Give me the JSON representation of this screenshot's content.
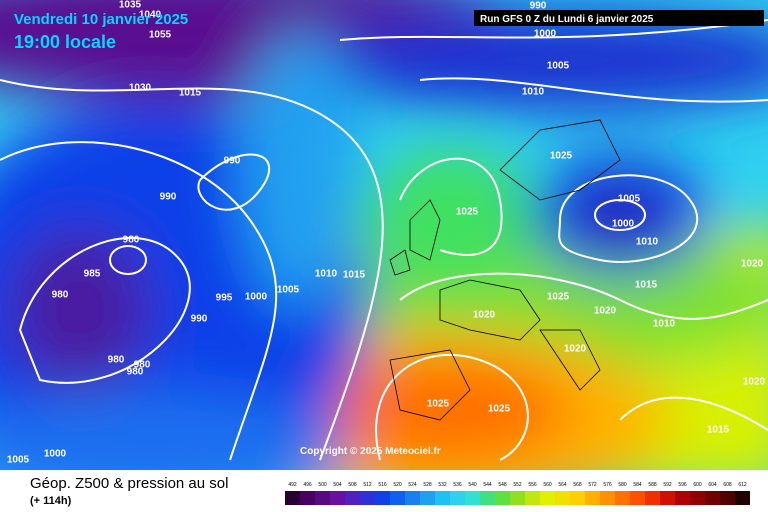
{
  "header": {
    "valid_date": "Vendredi 10 janvier 2025",
    "local_time": "19:00 locale",
    "run": "Run GFS 0 Z du Lundi 6 janvier 2025"
  },
  "copyright": "Copyright © 2025 Meteociel.fr",
  "footer": {
    "title": "Géop. Z500 & pression au sol",
    "lead_time": "(+ 114h)"
  },
  "legend": {
    "levels": [
      492,
      496,
      500,
      504,
      508,
      512,
      516,
      520,
      524,
      528,
      532,
      536,
      540,
      544,
      548,
      552,
      556,
      560,
      564,
      568,
      572,
      576,
      580,
      584,
      588,
      592,
      596,
      600,
      604,
      608,
      612
    ]
  },
  "isobar_labels": [
    1035,
    1040,
    1055,
    1030,
    1015,
    990,
    1000,
    1005,
    1010,
    1025,
    990,
    990,
    1025,
    1005,
    1000,
    1010,
    980,
    985,
    980,
    995,
    1000,
    1005,
    1010,
    1015,
    990,
    1020,
    1025,
    1020,
    1015,
    1010,
    1020,
    1020,
    980,
    980,
    980,
    1020,
    1025,
    1025,
    1015,
    1005,
    1000
  ]
}
